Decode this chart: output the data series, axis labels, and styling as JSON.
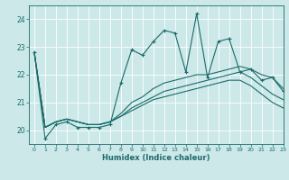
{
  "xlabel": "Humidex (Indice chaleur)",
  "bg_color": "#cce8e8",
  "grid_color": "#ffffff",
  "line_color": "#1a6b6b",
  "xlim": [
    -0.5,
    23
  ],
  "ylim": [
    19.5,
    24.5
  ],
  "yticks": [
    20,
    21,
    22,
    23,
    24
  ],
  "xticks": [
    0,
    1,
    2,
    3,
    4,
    5,
    6,
    7,
    8,
    9,
    10,
    11,
    12,
    13,
    14,
    15,
    16,
    17,
    18,
    19,
    20,
    21,
    22,
    23
  ],
  "xtick_labels": [
    "0",
    "1",
    "2",
    "3",
    "4",
    "5",
    "6",
    "7",
    "8",
    "9",
    "10",
    "11",
    "12",
    "13",
    "14",
    "15",
    "16",
    "17",
    "18",
    "19",
    "20",
    "21",
    "22",
    "23"
  ],
  "series_jagged": [
    22.8,
    19.7,
    20.2,
    20.3,
    20.1,
    20.1,
    20.1,
    20.2,
    21.7,
    22.9,
    22.7,
    23.2,
    23.6,
    23.5,
    22.1,
    24.2,
    21.9,
    23.2,
    23.3,
    22.1,
    22.2,
    21.8,
    21.9,
    21.4
  ],
  "series_smooth": [
    [
      22.8,
      20.1,
      20.3,
      20.4,
      20.3,
      20.2,
      20.2,
      20.3,
      20.6,
      21.0,
      21.2,
      21.5,
      21.7,
      21.8,
      21.9,
      22.0,
      22.0,
      22.1,
      22.2,
      22.3,
      22.2,
      22.0,
      21.9,
      21.5
    ],
    [
      22.8,
      20.1,
      20.3,
      20.4,
      20.3,
      20.2,
      20.2,
      20.3,
      20.5,
      20.8,
      21.0,
      21.2,
      21.4,
      21.5,
      21.6,
      21.7,
      21.8,
      21.9,
      22.0,
      22.1,
      21.9,
      21.6,
      21.3,
      21.1
    ],
    [
      22.8,
      20.1,
      20.3,
      20.4,
      20.3,
      20.2,
      20.2,
      20.3,
      20.5,
      20.7,
      20.9,
      21.1,
      21.2,
      21.3,
      21.4,
      21.5,
      21.6,
      21.7,
      21.8,
      21.8,
      21.6,
      21.3,
      21.0,
      20.8
    ]
  ]
}
